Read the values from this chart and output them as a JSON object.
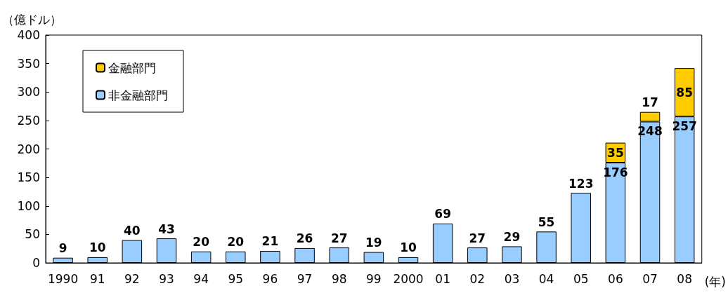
{
  "chart_data": {
    "type": "bar",
    "stacked": true,
    "ylabel": "（億ドル）",
    "xlabel": "(年)",
    "categories": [
      "1990",
      "91",
      "92",
      "93",
      "94",
      "95",
      "96",
      "97",
      "98",
      "99",
      "2000",
      "01",
      "02",
      "03",
      "04",
      "05",
      "06",
      "07",
      "08"
    ],
    "series": [
      {
        "name": "非金融部門",
        "color": "#99ccff",
        "values": [
          9,
          10,
          40,
          43,
          20,
          20,
          21,
          26,
          27,
          19,
          10,
          69,
          27,
          29,
          55,
          123,
          176,
          248,
          257
        ]
      },
      {
        "name": "金融部門",
        "color": "#ffcc00",
        "values": [
          null,
          null,
          null,
          null,
          null,
          null,
          null,
          null,
          null,
          null,
          null,
          null,
          null,
          null,
          null,
          null,
          35,
          17,
          85
        ]
      }
    ],
    "ylim": [
      0,
      400
    ],
    "yticks": [
      0,
      50,
      100,
      150,
      200,
      250,
      300,
      350,
      400
    ],
    "grid": false,
    "legend": "top left",
    "data_labels": true
  }
}
